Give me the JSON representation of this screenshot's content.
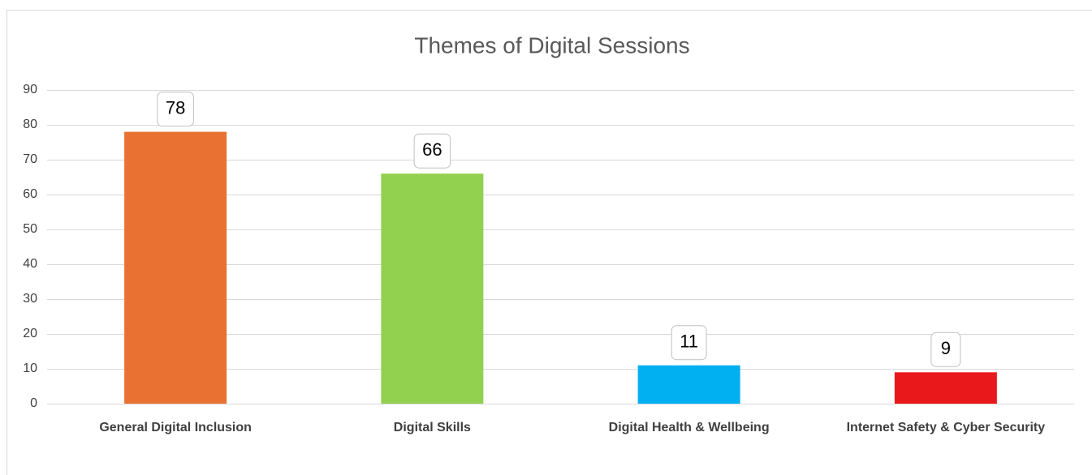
{
  "chart_data": {
    "type": "bar",
    "title": "Themes of Digital Sessions",
    "categories": [
      "General Digital Inclusion",
      "Digital Skills",
      "Digital Health & Wellbeing",
      "Internet Safety & Cyber Security"
    ],
    "values": [
      78,
      66,
      11,
      9
    ],
    "colors": [
      "#e97132",
      "#92d050",
      "#00b0f0",
      "#e9191b"
    ],
    "ylim": [
      0,
      90
    ],
    "yticks": [
      0,
      10,
      20,
      30,
      40,
      50,
      60,
      70,
      80,
      90
    ],
    "grid": true
  }
}
